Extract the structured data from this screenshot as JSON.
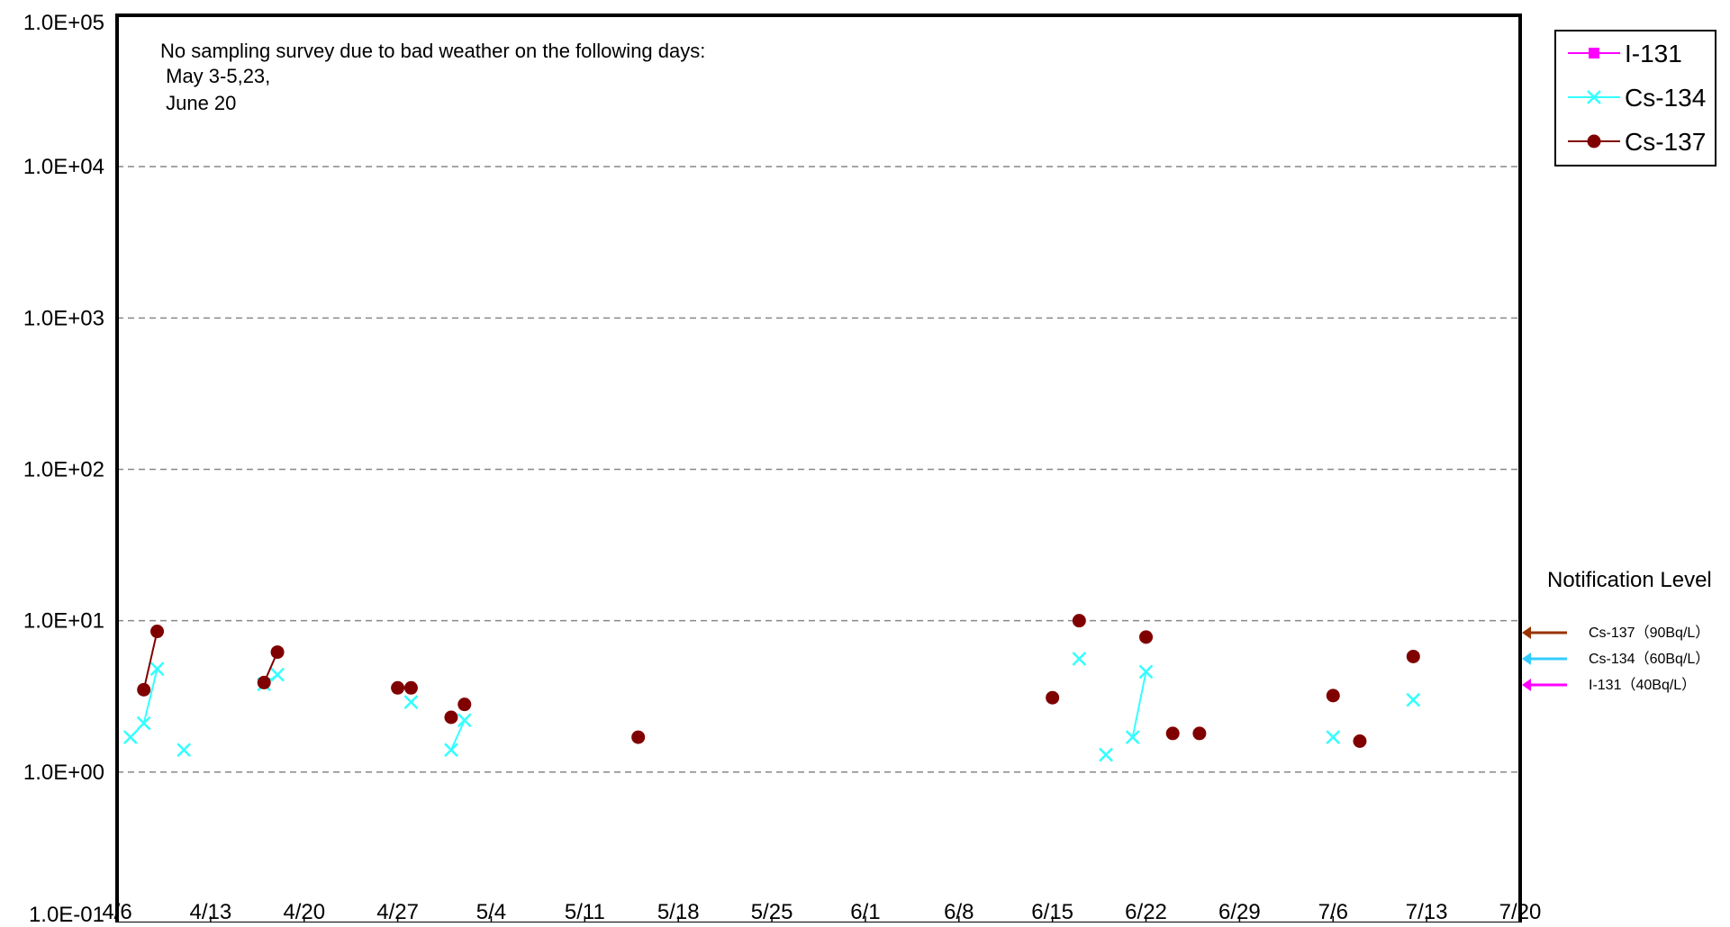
{
  "chart_data": {
    "type": "scatter",
    "y_scale": "log",
    "ylim": [
      0.1,
      100000
    ],
    "xlim": [
      "4/6",
      "7/20"
    ],
    "y_ticks": [
      {
        "value": 0.1,
        "label": "1.0E-01"
      },
      {
        "value": 1,
        "label": "1.0E+00"
      },
      {
        "value": 10,
        "label": "1.0E+01"
      },
      {
        "value": 100,
        "label": "1.0E+02"
      },
      {
        "value": 1000,
        "label": "1.0E+03"
      },
      {
        "value": 10000,
        "label": "1.0E+04"
      },
      {
        "value": 100000,
        "label": "1.0E+05"
      }
    ],
    "x_ticks": [
      "4/6",
      "4/13",
      "4/20",
      "4/27",
      "5/4",
      "5/11",
      "5/18",
      "5/25",
      "6/1",
      "6/8",
      "6/15",
      "6/22",
      "6/29",
      "7/6",
      "7/13",
      "7/20"
    ],
    "grid": "horizontal dashed",
    "annotation": {
      "lines": [
        "No sampling survey due to bad weather on the following days:",
        " May 3-5,23,",
        " June 20"
      ]
    },
    "legend": {
      "placement": "top-right",
      "entries": [
        "I-131",
        "Cs-134",
        "Cs-137"
      ]
    },
    "notification_levels": {
      "title": "Notification Level",
      "items": [
        {
          "label": "Cs-137（90Bq/L）",
          "color": "#993300"
        },
        {
          "label": "Cs-134（60Bq/L）",
          "color": "#33ccff"
        },
        {
          "label": "I-131（40Bq/L）",
          "color": "#ff00ff"
        }
      ]
    },
    "series": [
      {
        "name": "I-131",
        "color": "#ff00ff",
        "marker": "square",
        "segments": []
      },
      {
        "name": "Cs-134",
        "color": "#33ffff",
        "marker": "x",
        "segments": [
          [
            [
              "4/7",
              1.7
            ],
            [
              "4/8",
              2.1
            ],
            [
              "4/9",
              4.8
            ]
          ],
          [
            [
              "4/11",
              1.4
            ]
          ],
          [
            [
              "4/17",
              3.8
            ],
            [
              "4/18",
              4.4
            ]
          ],
          [
            [
              "4/28",
              2.9
            ]
          ],
          [
            [
              "5/1",
              1.4
            ],
            [
              "5/2",
              2.2
            ]
          ],
          [
            [
              "6/17",
              5.6
            ]
          ],
          [
            [
              "6/19",
              1.3
            ]
          ],
          [
            [
              "6/21",
              1.7
            ],
            [
              "6/22",
              4.6
            ]
          ],
          [
            [
              "7/6",
              1.7
            ]
          ],
          [
            [
              "7/12",
              3.0
            ]
          ]
        ]
      },
      {
        "name": "Cs-137",
        "color": "#800000",
        "marker": "circle",
        "segments": [
          [
            [
              "4/8",
              3.5
            ],
            [
              "4/9",
              8.5
            ]
          ],
          [
            [
              "4/17",
              3.9
            ],
            [
              "4/18",
              6.2
            ]
          ],
          [
            [
              "4/27",
              3.6
            ]
          ],
          [
            [
              "4/28",
              3.6
            ]
          ],
          [
            [
              "5/1",
              2.3
            ]
          ],
          [
            [
              "5/2",
              2.8
            ]
          ],
          [
            [
              "5/15",
              1.7
            ]
          ],
          [
            [
              "6/15",
              3.1
            ]
          ],
          [
            [
              "6/17",
              10.0
            ]
          ],
          [
            [
              "6/22",
              7.8
            ]
          ],
          [
            [
              "6/24",
              1.8
            ]
          ],
          [
            [
              "6/26",
              1.8
            ]
          ],
          [
            [
              "7/6",
              3.2
            ]
          ],
          [
            [
              "7/8",
              1.6
            ]
          ],
          [
            [
              "7/12",
              5.8
            ]
          ]
        ]
      }
    ]
  }
}
